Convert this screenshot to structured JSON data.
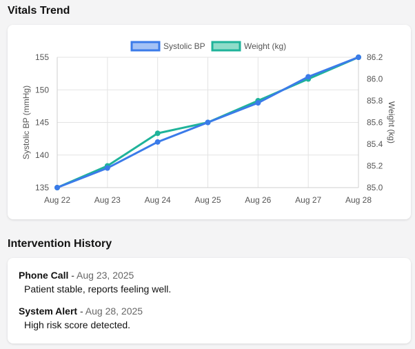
{
  "vitals": {
    "title": "Vitals Trend",
    "chart_data": {
      "type": "line",
      "categories": [
        "Aug 22",
        "Aug 23",
        "Aug 24",
        "Aug 25",
        "Aug 26",
        "Aug 27",
        "Aug 28"
      ],
      "series": [
        {
          "name": "Systolic BP",
          "axis": "left",
          "color": "#3b7be9",
          "fill": "#a4c2f5",
          "values": [
            135,
            138,
            142,
            145,
            148,
            152,
            155
          ]
        },
        {
          "name": "Weight (kg)",
          "axis": "right",
          "color": "#1fb39a",
          "fill": "#8fdcc9",
          "values": [
            85.0,
            85.2,
            85.5,
            85.6,
            85.8,
            86.0,
            86.2
          ]
        }
      ],
      "y_left": {
        "label": "Systolic BP (mmHg)",
        "min": 135,
        "max": 155,
        "ticks": [
          "135",
          "140",
          "145",
          "150",
          "155"
        ]
      },
      "y_right": {
        "label": "Weight (kg)",
        "min": 85.0,
        "max": 86.2,
        "ticks": [
          "85.0",
          "85.2",
          "85.4",
          "85.6",
          "85.8",
          "86.0",
          "86.2"
        ]
      },
      "grid": true,
      "legend_position": "top"
    }
  },
  "history": {
    "title": "Intervention History",
    "entries": [
      {
        "type": "Phone Call",
        "separator": "-",
        "date": "Aug 23, 2025",
        "note": "Patient stable, reports feeling well."
      },
      {
        "type": "System Alert",
        "separator": "-",
        "date": "Aug 28, 2025",
        "note": "High risk score detected."
      }
    ]
  }
}
